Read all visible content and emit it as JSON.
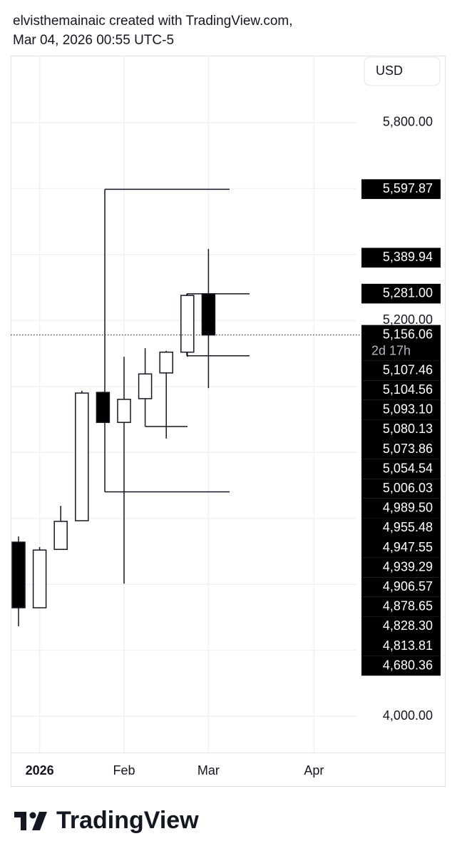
{
  "chart_data": {
    "type": "candlestick",
    "watermark": [
      "elvisthemainaic created with TradingView.com,",
      "Mar 04, 2026 00:55 UTC-5"
    ],
    "currency": "USD",
    "brand": "TradingView",
    "categories": [
      null,
      "2026",
      null,
      null,
      null,
      "Feb",
      null,
      null,
      null,
      "Mar",
      null,
      null,
      null,
      null,
      "Apr"
    ],
    "open": [
      4528,
      4329,
      4506,
      4593,
      4982,
      4891,
      4963,
      5041,
      5104,
      5281,
      null,
      null,
      null,
      null,
      null
    ],
    "high": [
      4545,
      4513,
      4638,
      4987,
      4984,
      5090,
      5116,
      5108,
      5281,
      5417,
      null,
      null,
      null,
      null,
      null
    ],
    "low": [
      4273,
      4329,
      4506,
      4593,
      4891,
      4402,
      4878,
      4842,
      5090,
      4995,
      null,
      null,
      null,
      null,
      null
    ],
    "close": [
      4329,
      4504,
      4591,
      4980,
      4891,
      4961,
      5038,
      5104,
      5276,
      5156,
      null,
      null,
      null,
      null,
      null
    ],
    "up_color": "#ffffff",
    "down_color": "#000000",
    "ylim": [
      3890,
      6003
    ],
    "yticks": [
      {
        "value": 4000,
        "label": "4,000.00"
      },
      {
        "value": 4200,
        "label": null
      },
      {
        "value": 4400,
        "label": null
      },
      {
        "value": 4600,
        "label": null
      },
      {
        "value": 4800,
        "label": null
      },
      {
        "value": 5000,
        "label": null
      },
      {
        "value": 5200,
        "label": "5,200.00"
      },
      {
        "value": 5400,
        "label": null
      },
      {
        "value": 5600,
        "label": null
      },
      {
        "value": 5800,
        "label": "5,800.00"
      }
    ],
    "grid": true,
    "price_labels": [
      {
        "value": 5597.87,
        "label": "5,597.87"
      },
      {
        "value": 5389.94,
        "label": "5,389.94"
      },
      {
        "value": 5281.0,
        "label": "5,281.00"
      },
      {
        "value": 5156.06,
        "label": "5,156.06",
        "countdown": "2d 17h"
      },
      {
        "value": 5107.46,
        "label": "5,107.46"
      },
      {
        "value": 5104.56,
        "label": "5,104.56"
      },
      {
        "value": 5093.1,
        "label": "5,093.10"
      },
      {
        "value": 5080.13,
        "label": "5,080.13"
      },
      {
        "value": 5073.86,
        "label": "5,073.86"
      },
      {
        "value": 5054.54,
        "label": "5,054.54"
      },
      {
        "value": 5006.03,
        "label": "5,006.03"
      },
      {
        "value": 4989.5,
        "label": "4,989.50"
      },
      {
        "value": 4955.48,
        "label": "4,955.48"
      },
      {
        "value": 4947.55,
        "label": "4,947.55"
      },
      {
        "value": 4939.29,
        "label": "4,939.29"
      },
      {
        "value": 4906.57,
        "label": "4,906.57"
      },
      {
        "value": 4878.65,
        "label": "4,878.65"
      },
      {
        "value": 4828.3,
        "label": "4,828.30"
      },
      {
        "value": 4813.81,
        "label": "4,813.81"
      },
      {
        "value": 4680.36,
        "label": "4,680.36"
      }
    ]
  }
}
